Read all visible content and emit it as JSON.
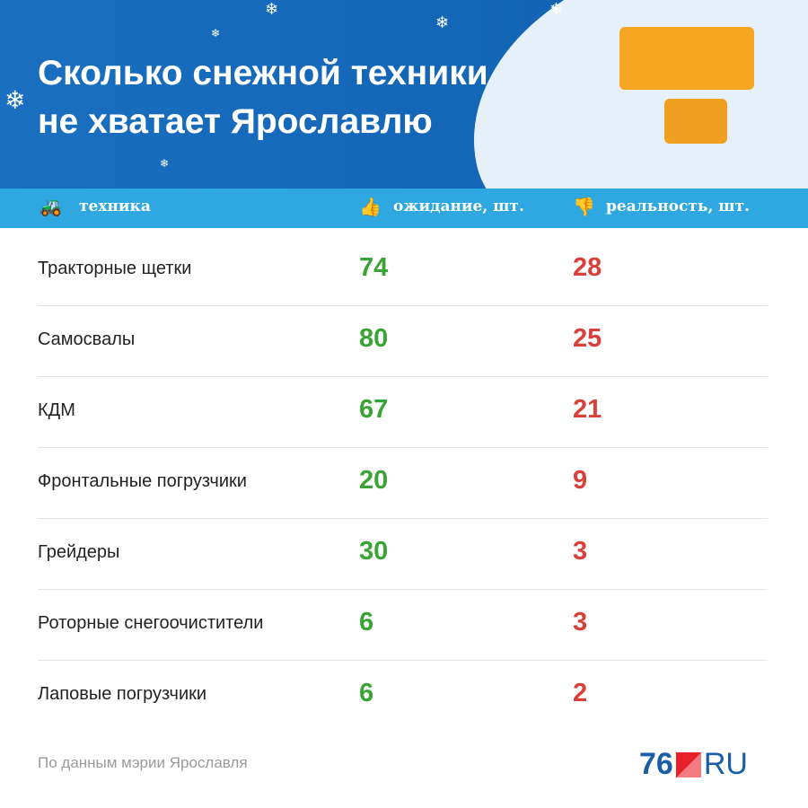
{
  "title": [
    "Сколько снежной техники",
    "не хватает Ярославлю"
  ],
  "header": {
    "col1": "техника",
    "col2": "ожидание, шт.",
    "col3": "реальность, шт."
  },
  "rows": [
    {
      "name": "Тракторные щетки",
      "expected": "74",
      "actual": "28"
    },
    {
      "name": "Самосвалы",
      "expected": "80",
      "actual": "25"
    },
    {
      "name": "КДМ",
      "expected": "67",
      "actual": "21"
    },
    {
      "name": "Фронтальные погрузчики",
      "expected": "20",
      "actual": "9"
    },
    {
      "name": "Грейдеры",
      "expected": "30",
      "actual": "3"
    },
    {
      "name": "Роторные снегоочистители",
      "expected": "6",
      "actual": "3"
    },
    {
      "name": "Лаповые погрузчики",
      "expected": "6",
      "actual": "2"
    }
  ],
  "source": "По данным мэрии Ярославля",
  "logo": {
    "num": "76",
    "ru": "RU"
  },
  "colors": {
    "expected": "#3aa335",
    "actual": "#d9403a",
    "header": "#2fa7e0"
  }
}
